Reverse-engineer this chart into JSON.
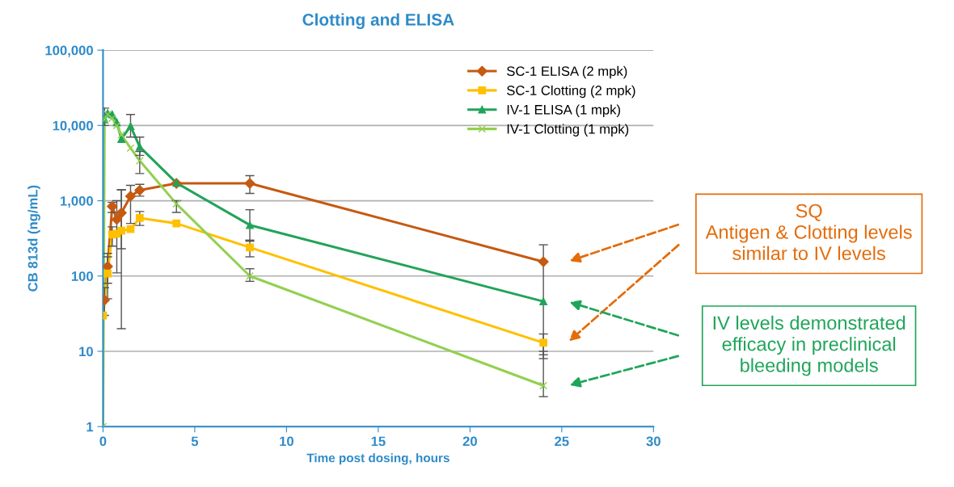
{
  "chart_data": {
    "type": "line",
    "title": "Clotting and ELISA",
    "xlabel": "Time post dosing, hours",
    "ylabel": "CB 813d (ng/mL)",
    "log": "y",
    "xlim": [
      0,
      30
    ],
    "xticks": [
      0,
      5,
      10,
      15,
      20,
      25,
      30
    ],
    "ylim": [
      1,
      100000
    ],
    "yticks": [
      {
        "value": 1,
        "label": "1"
      },
      {
        "value": 10,
        "label": "10"
      },
      {
        "value": 100,
        "label": "100"
      },
      {
        "value": 1000,
        "label": "1,000"
      },
      {
        "value": 10000,
        "label": "10,000"
      },
      {
        "value": 100000,
        "label": "100,000"
      }
    ],
    "grid": "y",
    "legend": "top right",
    "line_style": "solid",
    "series": [
      {
        "name": "SC-1 ELISA (2 mpk)",
        "color": "#c55a11",
        "marker": "diamond",
        "x": [
          0.083,
          0.25,
          0.5,
          0.75,
          1,
          1.5,
          2,
          4,
          8,
          24
        ],
        "values": [
          48,
          134,
          840,
          565,
          690,
          1150,
          1380,
          1700,
          1700,
          155
        ],
        "errors": [
          [
            30,
            70
          ],
          [
            80,
            200
          ],
          [
            700,
            950
          ],
          [
            110,
            1000
          ],
          [
            230,
            1400
          ],
          [
            500,
            1600
          ],
          [
            1150,
            1650
          ],
          null,
          [
            1250,
            2150
          ],
          [
            8,
            260
          ]
        ]
      },
      {
        "name": "SC-1 Clotting (2 mpk)",
        "color": "#ffc000",
        "marker": "square",
        "x": [
          0,
          0.25,
          0.5,
          0.75,
          1,
          1.5,
          2,
          4,
          8,
          24
        ],
        "values": [
          30,
          108,
          355,
          365,
          400,
          420,
          590,
          500,
          240,
          13
        ],
        "errors": [
          null,
          [
            50,
            180
          ],
          [
            250,
            450
          ],
          null,
          [
            20,
            1400
          ],
          null,
          [
            470,
            720
          ],
          null,
          [
            180,
            300
          ],
          [
            9,
            17
          ]
        ]
      },
      {
        "name": "IV-1 ELISA (1 mpk)",
        "color": "#22a35a",
        "marker": "triangle",
        "x": [
          0.083,
          0.25,
          0.5,
          0.75,
          1,
          1.5,
          2,
          4,
          8,
          24
        ],
        "values": [
          12000,
          14500,
          14000,
          11000,
          6600,
          9800,
          5200,
          1730,
          475,
          46
        ],
        "errors": [
          [
            10000,
            17000
          ],
          null,
          null,
          null,
          null,
          [
            7000,
            14000
          ],
          [
            4000,
            7000
          ],
          null,
          [
            290,
            760
          ],
          null
        ]
      },
      {
        "name": "IV-1 Clotting (1 mpk)",
        "color": "#92d050",
        "marker": "cross",
        "x": [
          0,
          0.083,
          0.25,
          0.5,
          0.75,
          1,
          1.5,
          2,
          4,
          8,
          24
        ],
        "values": [
          1,
          12000,
          14000,
          12500,
          10000,
          7500,
          5000,
          3400,
          910,
          100,
          3.5
        ],
        "errors": [
          null,
          null,
          null,
          null,
          null,
          null,
          null,
          [
            2300,
            4500
          ],
          [
            700,
            1000
          ],
          [
            85,
            125
          ],
          [
            2.5,
            10
          ]
        ]
      }
    ],
    "annotations": [
      "SQ\nAntigen & Clotting levels\nsimilar to IV levels",
      "IV levels demonstrated\nefficacy in preclinical\nbleeding models"
    ]
  }
}
